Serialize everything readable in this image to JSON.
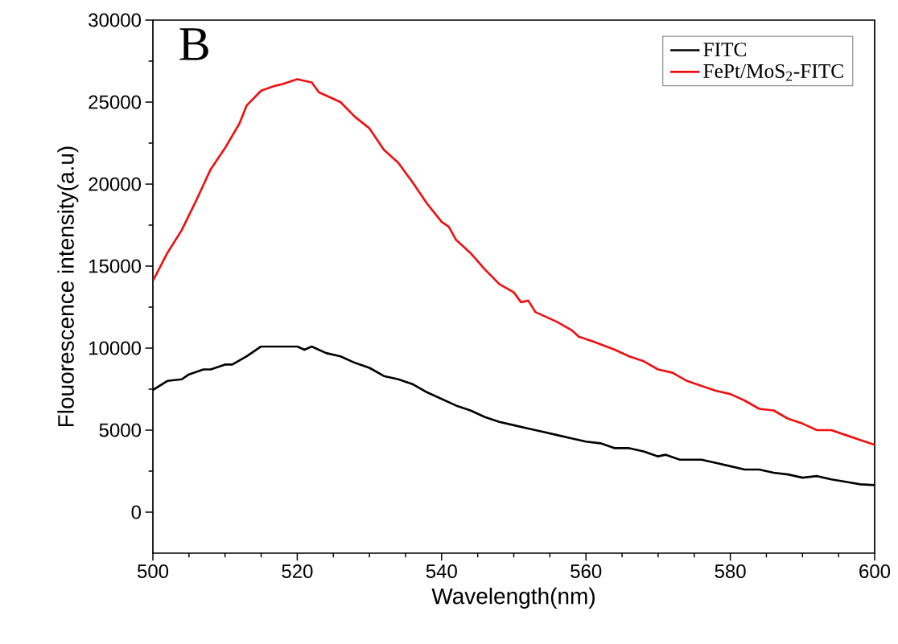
{
  "chart_data": {
    "type": "line",
    "xlabel": "Wavelength(nm)",
    "ylabel": "Flouorescence intensity(a.u)",
    "annotations": [
      "B"
    ],
    "xlim": [
      500,
      600
    ],
    "xticks": [
      500,
      520,
      540,
      560,
      580,
      600
    ],
    "ylim": [
      -2500,
      30000
    ],
    "yticks": [
      0,
      5000,
      10000,
      15000,
      20000,
      25000,
      30000
    ],
    "legend": "top right",
    "line_style": "solid",
    "series": [
      {
        "name": "FITC",
        "color": "#000000",
        "x": [
          500,
          502,
          504,
          505,
          507,
          508,
          510,
          511,
          513,
          515,
          518,
          520,
          521,
          522,
          524,
          526,
          528,
          530,
          532,
          534,
          536,
          538,
          540,
          542,
          544,
          546,
          548,
          550,
          552,
          554,
          556,
          558,
          560,
          562,
          564,
          566,
          568,
          570,
          571,
          573,
          576,
          578,
          580,
          582,
          584,
          586,
          588,
          590,
          592,
          594,
          596,
          598,
          600
        ],
        "values": [
          7450,
          8000,
          8100,
          8400,
          8700,
          8700,
          9000,
          9000,
          9500,
          10100,
          10100,
          10100,
          9900,
          10100,
          9700,
          9500,
          9100,
          8800,
          8300,
          8100,
          7800,
          7300,
          6900,
          6500,
          6200,
          5800,
          5500,
          5300,
          5100,
          4900,
          4700,
          4500,
          4300,
          4200,
          3900,
          3900,
          3700,
          3400,
          3500,
          3200,
          3200,
          3000,
          2800,
          2600,
          2600,
          2400,
          2300,
          2100,
          2200,
          2000,
          1850,
          1700,
          1650
        ]
      },
      {
        "name": "FePt/MoS$_{2}$-FITC",
        "color": "#ee1111",
        "x": [
          500,
          502,
          504,
          506,
          508,
          510,
          512,
          513,
          515,
          517,
          518,
          520,
          522,
          523,
          526,
          528,
          530,
          532,
          534,
          536,
          538,
          540,
          541,
          542,
          544,
          546,
          548,
          550,
          551,
          552,
          553,
          556,
          558,
          559,
          561,
          564,
          566,
          568,
          570,
          572,
          574,
          576,
          578,
          580,
          582,
          584,
          586,
          588,
          590,
          592,
          594,
          596,
          598,
          600
        ],
        "values": [
          14100,
          15800,
          17200,
          19000,
          20900,
          22200,
          23700,
          24800,
          25700,
          26000,
          26100,
          26400,
          26200,
          25600,
          25000,
          24100,
          23400,
          22100,
          21300,
          20100,
          18800,
          17700,
          17400,
          16600,
          15800,
          14800,
          13900,
          13400,
          12800,
          12900,
          12200,
          11600,
          11100,
          10700,
          10400,
          9900,
          9500,
          9200,
          8700,
          8500,
          8000,
          7700,
          7400,
          7200,
          6800,
          6300,
          6200,
          5700,
          5400,
          5000,
          5000,
          4700,
          4400,
          4100
        ]
      }
    ]
  }
}
